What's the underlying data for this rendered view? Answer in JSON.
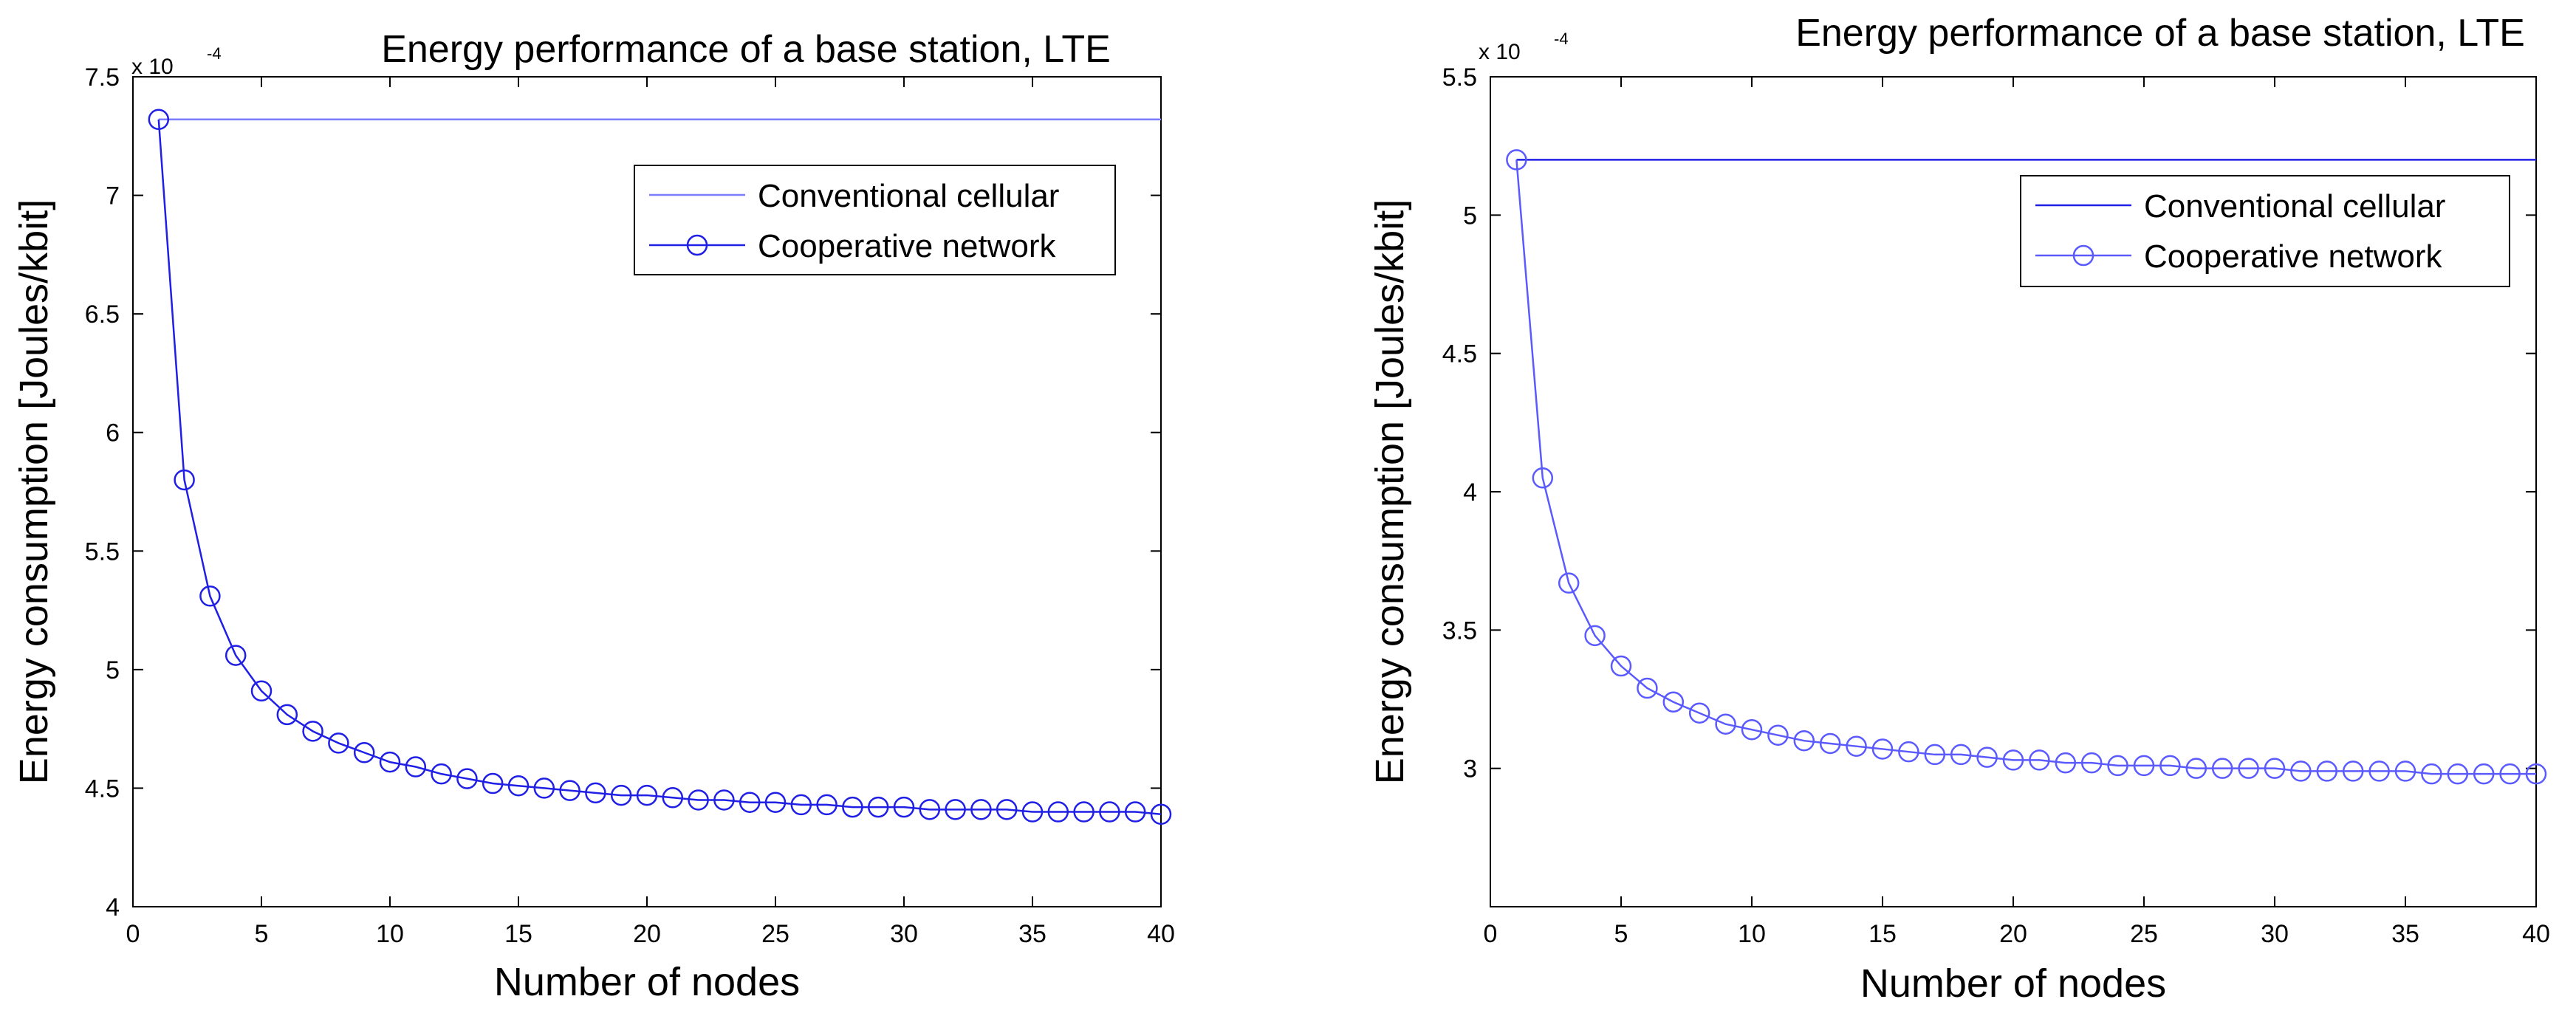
{
  "chart_data": [
    {
      "type": "line",
      "title": "Energy performance of a base station, LTE",
      "xlabel": "Number of nodes",
      "ylabel": "Energy consumption [Joules/kbit]",
      "y_exponent_base": "x 10",
      "y_exponent_power": "-4",
      "xlim": [
        0,
        40
      ],
      "ylim": [
        4.0,
        7.5
      ],
      "xticks": [
        "0",
        "5",
        "10",
        "15",
        "20",
        "25",
        "30",
        "35",
        "40"
      ],
      "yticks": [
        "4",
        "4.5",
        "5",
        "5.5",
        "6",
        "6.5",
        "7",
        "7.5"
      ],
      "grid": false,
      "legend_position": "top-right",
      "series": [
        {
          "name": "Conventional cellular",
          "style": "line",
          "color": "#7b7bff",
          "x": [
            1,
            40
          ],
          "y": [
            7.32,
            7.32
          ]
        },
        {
          "name": "Cooperative network",
          "style": "line-circle",
          "color": "#1f1fe6",
          "x": [
            1,
            2,
            3,
            4,
            5,
            6,
            7,
            8,
            9,
            10,
            11,
            12,
            13,
            14,
            15,
            16,
            17,
            18,
            19,
            20,
            21,
            22,
            23,
            24,
            25,
            26,
            27,
            28,
            29,
            30,
            31,
            32,
            33,
            34,
            35,
            36,
            37,
            38,
            39,
            40
          ],
          "y": [
            7.32,
            5.8,
            5.31,
            5.06,
            4.91,
            4.81,
            4.74,
            4.69,
            4.65,
            4.61,
            4.59,
            4.56,
            4.54,
            4.52,
            4.51,
            4.5,
            4.49,
            4.48,
            4.47,
            4.47,
            4.46,
            4.45,
            4.45,
            4.44,
            4.44,
            4.43,
            4.43,
            4.42,
            4.42,
            4.42,
            4.41,
            4.41,
            4.41,
            4.41,
            4.4,
            4.4,
            4.4,
            4.4,
            4.4,
            4.39
          ]
        }
      ]
    },
    {
      "type": "line",
      "title": "Energy performance of a base station, LTE",
      "xlabel": "Number of nodes",
      "ylabel": "Energy consumption [Joules/kbit]",
      "y_exponent_base": "x 10",
      "y_exponent_power": "-4",
      "xlim": [
        0,
        40
      ],
      "ylim": [
        2.5,
        5.5
      ],
      "xticks": [
        "0",
        "5",
        "10",
        "15",
        "20",
        "25",
        "30",
        "35",
        "40"
      ],
      "yticks": [
        "3",
        "3.5",
        "4",
        "4.5",
        "5",
        "5.5"
      ],
      "grid": false,
      "legend_position": "top-right",
      "series": [
        {
          "name": "Conventional cellular",
          "style": "line",
          "color": "#1f1fe6",
          "x": [
            1,
            40
          ],
          "y": [
            5.2,
            5.2
          ]
        },
        {
          "name": "Cooperative network",
          "style": "line-circle",
          "color": "#5a5aff",
          "x": [
            1,
            2,
            3,
            4,
            5,
            6,
            7,
            8,
            9,
            10,
            11,
            12,
            13,
            14,
            15,
            16,
            17,
            18,
            19,
            20,
            21,
            22,
            23,
            24,
            25,
            26,
            27,
            28,
            29,
            30,
            31,
            32,
            33,
            34,
            35,
            36,
            37,
            38,
            39,
            40
          ],
          "y": [
            5.2,
            4.05,
            3.67,
            3.48,
            3.37,
            3.29,
            3.24,
            3.2,
            3.16,
            3.14,
            3.12,
            3.1,
            3.09,
            3.08,
            3.07,
            3.06,
            3.05,
            3.05,
            3.04,
            3.03,
            3.03,
            3.02,
            3.02,
            3.01,
            3.01,
            3.01,
            3.0,
            3.0,
            3.0,
            3.0,
            2.99,
            2.99,
            2.99,
            2.99,
            2.99,
            2.98,
            2.98,
            2.98,
            2.98,
            2.98
          ]
        }
      ]
    }
  ]
}
